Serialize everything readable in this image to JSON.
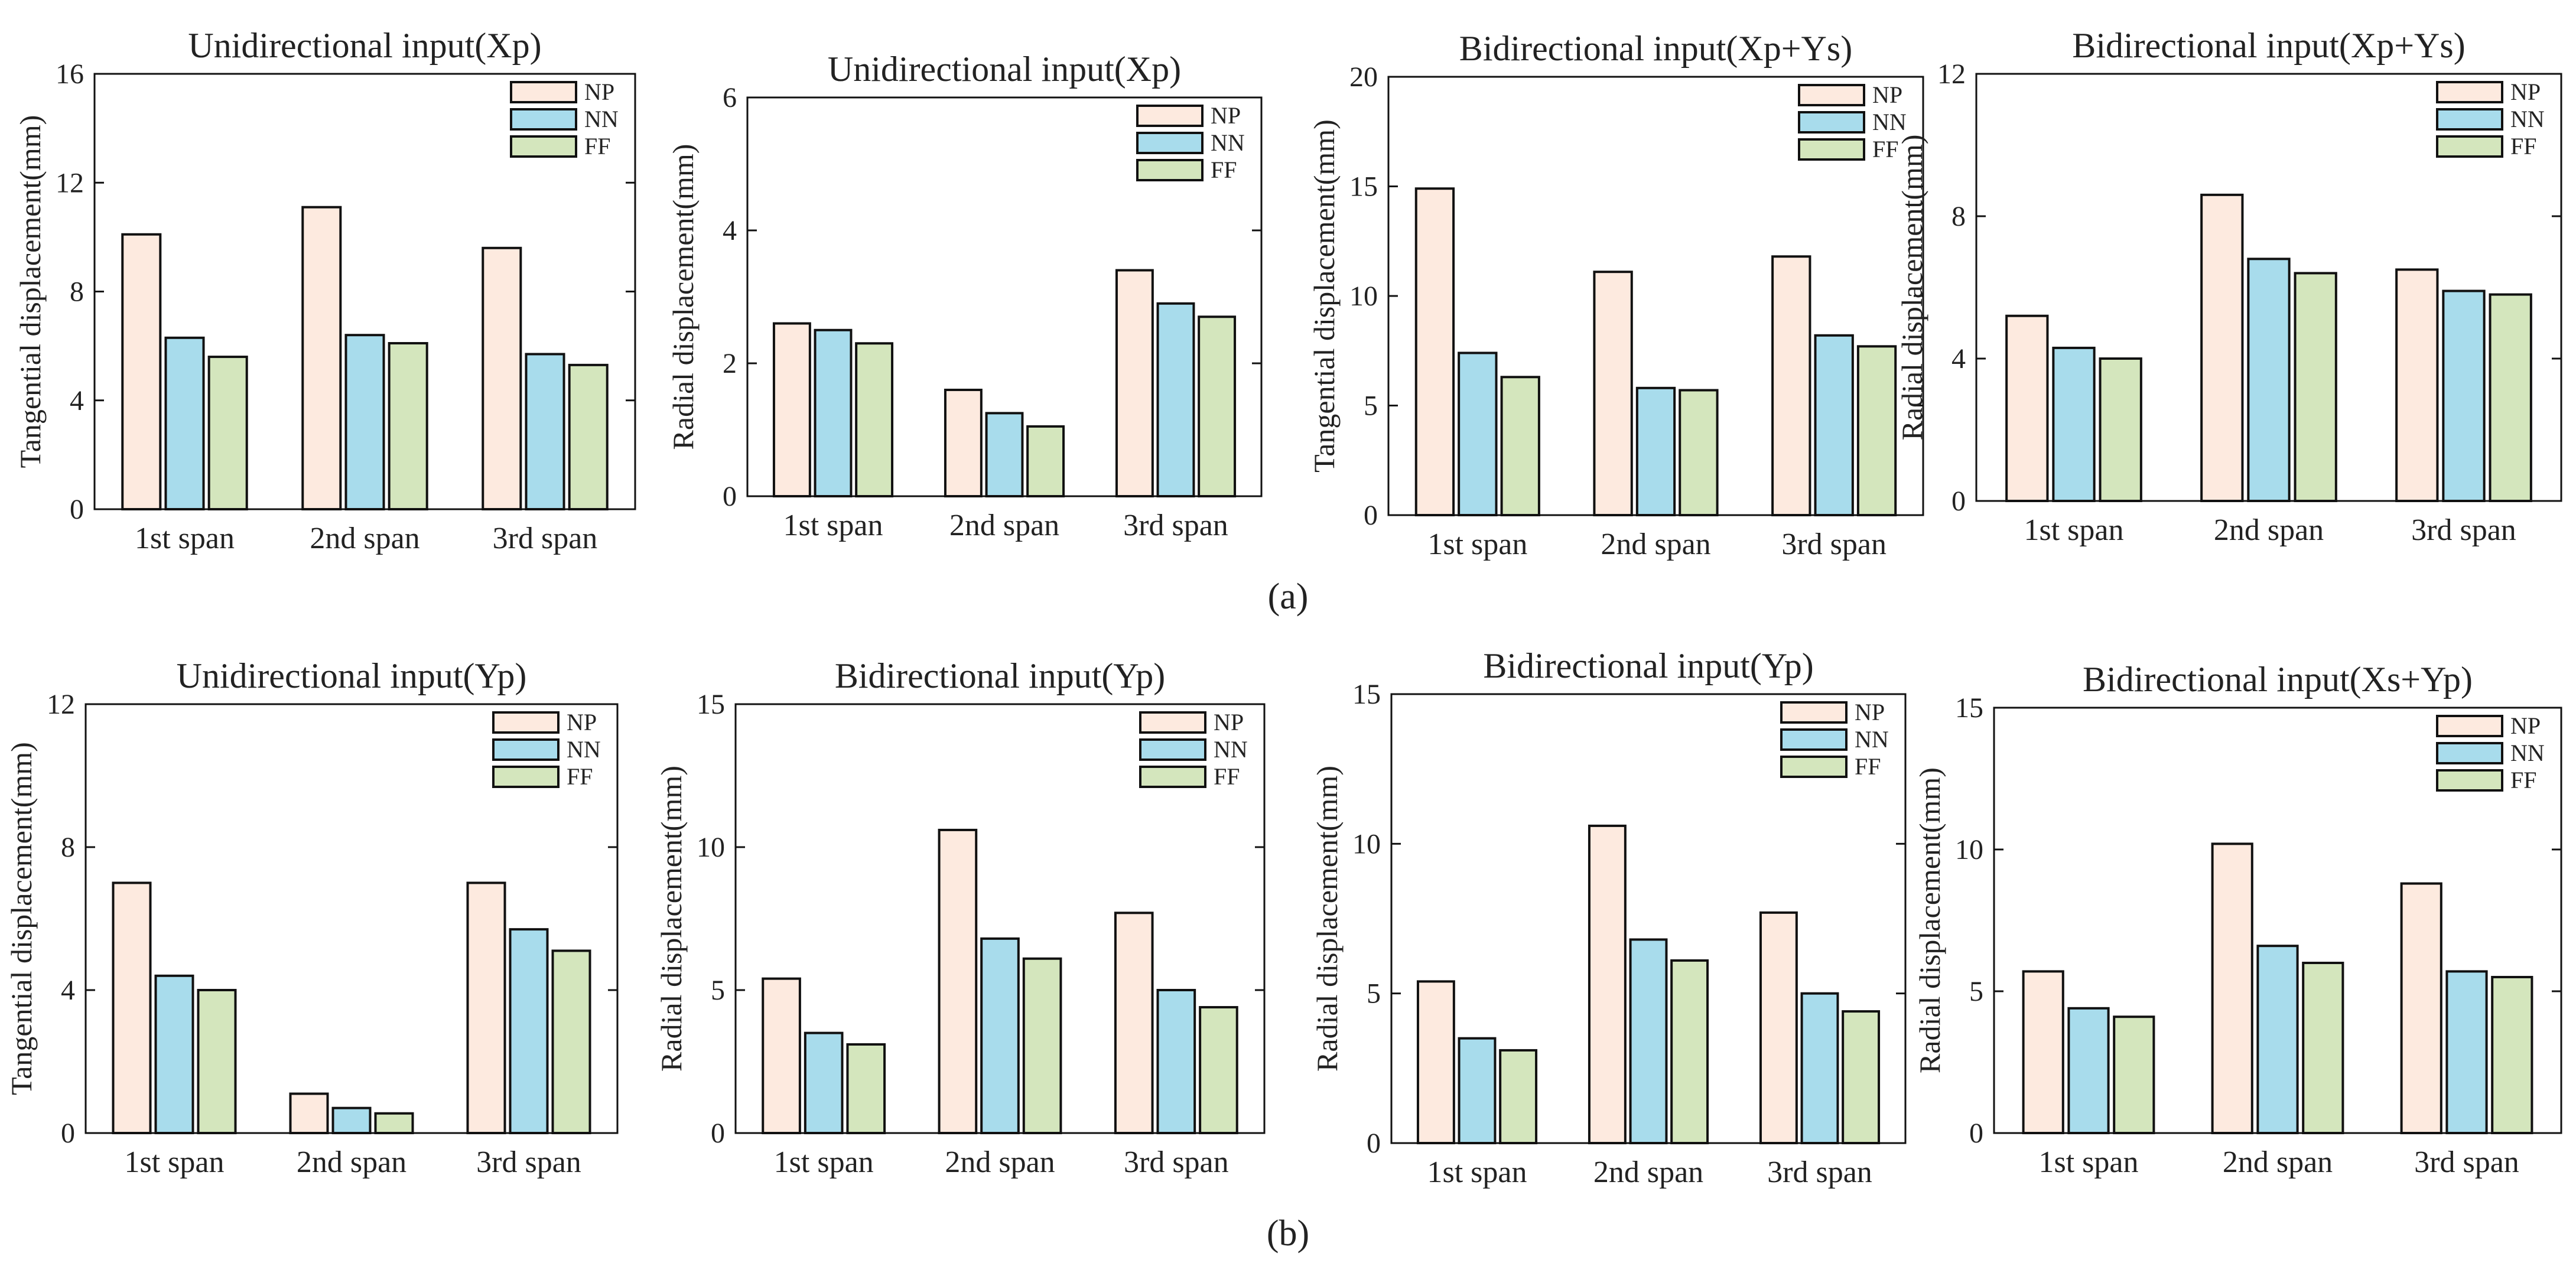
{
  "figure": {
    "group_labels": [
      "(a)",
      "(b)"
    ],
    "series_names": [
      "NP",
      "NN",
      "FF"
    ],
    "colors": {
      "NP": "#fdeadf",
      "NN": "#a8dcec",
      "FF": "#d4e6bd",
      "stroke": "#111111"
    }
  },
  "chart_data": [
    {
      "type": "bar",
      "title": "Unidirectional input(Xp)",
      "ylabel": "Tangential displacement(mm)",
      "categories": [
        "1st span",
        "2nd span",
        "3rd span"
      ],
      "ylim": [
        0,
        16
      ],
      "yticks": [
        0,
        4,
        8,
        12,
        16
      ],
      "legend": "top-right",
      "series": [
        {
          "name": "NP",
          "values": [
            10.1,
            11.1,
            9.6
          ]
        },
        {
          "name": "NN",
          "values": [
            6.3,
            6.4,
            5.7
          ]
        },
        {
          "name": "FF",
          "values": [
            5.6,
            6.1,
            5.3
          ]
        }
      ]
    },
    {
      "type": "bar",
      "title": "Unidirectional input(Xp)",
      "ylabel": "Radial displacement(mm)",
      "categories": [
        "1st span",
        "2nd span",
        "3rd span"
      ],
      "ylim": [
        0,
        6
      ],
      "yticks": [
        0,
        2,
        4,
        6
      ],
      "legend": "top-right",
      "series": [
        {
          "name": "NP",
          "values": [
            2.6,
            1.6,
            3.4
          ]
        },
        {
          "name": "NN",
          "values": [
            2.5,
            1.25,
            2.9
          ]
        },
        {
          "name": "FF",
          "values": [
            2.3,
            1.05,
            2.7
          ]
        }
      ]
    },
    {
      "type": "bar",
      "title": "Bidirectional input(Xp+Ys)",
      "ylabel": "Tangential displacement(mm)",
      "categories": [
        "1st span",
        "2nd span",
        "3rd span"
      ],
      "ylim": [
        0,
        20
      ],
      "yticks": [
        0,
        5,
        10,
        15,
        20
      ],
      "legend": "top-right",
      "series": [
        {
          "name": "NP",
          "values": [
            14.9,
            11.1,
            11.8
          ]
        },
        {
          "name": "NN",
          "values": [
            7.4,
            5.8,
            8.2
          ]
        },
        {
          "name": "FF",
          "values": [
            6.3,
            5.7,
            7.7
          ]
        }
      ]
    },
    {
      "type": "bar",
      "title": "Bidirectional input(Xp+Ys)",
      "ylabel": "Radial displacement(mm)",
      "categories": [
        "1st span",
        "2nd span",
        "3rd span"
      ],
      "ylim": [
        0,
        12
      ],
      "yticks": [
        0,
        4,
        8,
        12
      ],
      "legend": "top-right",
      "series": [
        {
          "name": "NP",
          "values": [
            5.2,
            8.6,
            6.5
          ]
        },
        {
          "name": "NN",
          "values": [
            4.3,
            6.8,
            5.9
          ]
        },
        {
          "name": "FF",
          "values": [
            4.0,
            6.4,
            5.8
          ]
        }
      ]
    },
    {
      "type": "bar",
      "title": "Unidirectional  input(Yp)",
      "ylabel": "Tangential displacement(mm)",
      "categories": [
        "1st span",
        "2nd span",
        "3rd span"
      ],
      "ylim": [
        0,
        12
      ],
      "yticks": [
        0,
        4,
        8,
        12
      ],
      "legend": "top-right",
      "series": [
        {
          "name": "NP",
          "values": [
            7.0,
            1.1,
            7.0
          ]
        },
        {
          "name": "NN",
          "values": [
            4.4,
            0.7,
            5.7
          ]
        },
        {
          "name": "FF",
          "values": [
            4.0,
            0.55,
            5.1
          ]
        }
      ]
    },
    {
      "type": "bar",
      "title": "Bidirectional input(Yp)",
      "ylabel": "Radial displacement(mm)",
      "categories": [
        "1st span",
        "2nd span",
        "3rd span"
      ],
      "ylim": [
        0,
        15
      ],
      "yticks": [
        0,
        5,
        10,
        15
      ],
      "legend": "top-right",
      "series": [
        {
          "name": "NP",
          "values": [
            5.4,
            10.6,
            7.7
          ]
        },
        {
          "name": "NN",
          "values": [
            3.5,
            6.8,
            5.0
          ]
        },
        {
          "name": "FF",
          "values": [
            3.1,
            6.1,
            4.4
          ]
        }
      ]
    },
    {
      "type": "bar",
      "title": "Bidirectional input(Yp)",
      "ylabel": "Radial displacement(mm)",
      "categories": [
        "1st span",
        "2nd span",
        "3rd span"
      ],
      "ylim": [
        0,
        15
      ],
      "yticks": [
        0,
        5,
        10,
        15
      ],
      "legend": "top-right",
      "series": [
        {
          "name": "NP",
          "values": [
            5.4,
            10.6,
            7.7
          ]
        },
        {
          "name": "NN",
          "values": [
            3.5,
            6.8,
            5.0
          ]
        },
        {
          "name": "FF",
          "values": [
            3.1,
            6.1,
            4.4
          ]
        }
      ]
    },
    {
      "type": "bar",
      "title": "Bidirectional input(Xs+Yp)",
      "ylabel": "Radial displacement(mm)",
      "categories": [
        "1st span",
        "2nd span",
        "3rd span"
      ],
      "ylim": [
        0,
        15
      ],
      "yticks": [
        0,
        5,
        10,
        15
      ],
      "legend": "top-right",
      "series": [
        {
          "name": "NP",
          "values": [
            5.7,
            10.2,
            8.8
          ]
        },
        {
          "name": "NN",
          "values": [
            4.4,
            6.6,
            5.7
          ]
        },
        {
          "name": "FF",
          "values": [
            4.1,
            6.0,
            5.5
          ]
        }
      ]
    }
  ]
}
